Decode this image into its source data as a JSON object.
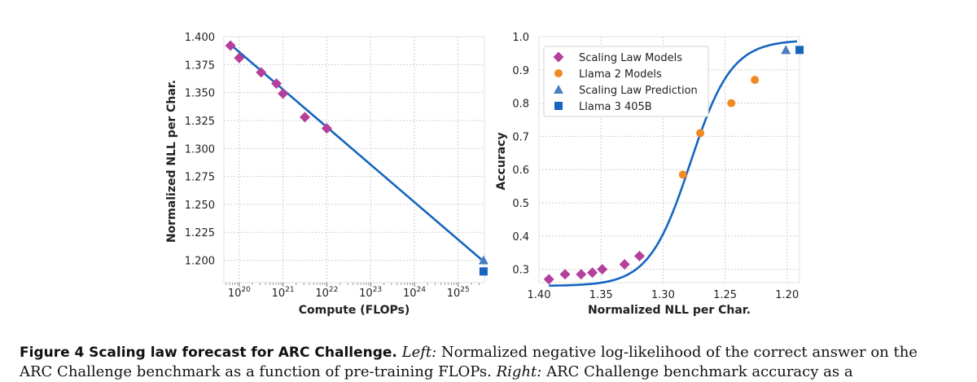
{
  "colors": {
    "fit_line": "#1565C0",
    "scaling_law_models": "#B5409C",
    "llama2": "#F08A24",
    "prediction": "#4A7FC0",
    "llama3": "#1565C0",
    "grid": "#cfcfcf"
  },
  "chart_data": [
    {
      "type": "scatter",
      "panel": "left",
      "xlabel": "Compute (FLOPs)",
      "ylabel": "Normalized NLL per Char.",
      "x_scale": "log10",
      "xlim_log10": [
        19.65,
        25.6
      ],
      "ylim": [
        1.18,
        1.4
      ],
      "x_ticks_log10": [
        20,
        21,
        22,
        23,
        24,
        25
      ],
      "x_tick_labels": [
        {
          "base": "10",
          "exp": "20"
        },
        {
          "base": "10",
          "exp": "21"
        },
        {
          "base": "10",
          "exp": "22"
        },
        {
          "base": "10",
          "exp": "23"
        },
        {
          "base": "10",
          "exp": "24"
        },
        {
          "base": "10",
          "exp": "25"
        }
      ],
      "y_ticks": [
        1.2,
        1.225,
        1.25,
        1.275,
        1.3,
        1.325,
        1.35,
        1.375,
        1.4
      ],
      "y_tick_labels": [
        "1.200",
        "1.225",
        "1.250",
        "1.275",
        "1.300",
        "1.325",
        "1.350",
        "1.375",
        "1.400"
      ],
      "fit_line": {
        "x_log10": [
          19.8,
          25.55
        ],
        "y": [
          1.393,
          1.2
        ]
      },
      "series": [
        {
          "name": "Scaling Law Models",
          "marker": "diamond",
          "x_log10": [
            19.8,
            20.0,
            20.5,
            20.85,
            21.0,
            21.5,
            22.0
          ],
          "y": [
            1.392,
            1.381,
            1.368,
            1.358,
            1.349,
            1.328,
            1.318
          ]
        },
        {
          "name": "Scaling Law Prediction",
          "marker": "triangle",
          "x_log10": [
            25.58
          ],
          "y": [
            1.2
          ]
        },
        {
          "name": "Llama 3 405B",
          "marker": "square",
          "x_log10": [
            25.58
          ],
          "y": [
            1.19
          ]
        }
      ]
    },
    {
      "type": "scatter",
      "panel": "right",
      "xlabel": "Normalized NLL per Char.",
      "ylabel": "Accuracy",
      "x_reversed": true,
      "xlim": [
        1.4,
        1.19
      ],
      "ylim": [
        0.26,
        1.0
      ],
      "x_ticks": [
        1.4,
        1.35,
        1.3,
        1.25,
        1.2
      ],
      "x_tick_labels": [
        "1.40",
        "1.35",
        "1.30",
        "1.25",
        "1.20"
      ],
      "y_ticks": [
        0.3,
        0.4,
        0.5,
        0.6,
        0.7,
        0.8,
        0.9,
        1.0
      ],
      "y_tick_labels": [
        "0.3",
        "0.4",
        "0.5",
        "0.6",
        "0.7",
        "0.8",
        "0.9",
        "1.0"
      ],
      "fit_curve": {
        "type": "sigmoid",
        "min": 0.25,
        "max": 0.99,
        "x0": 1.278,
        "k": 60,
        "x_range": [
          1.392,
          1.192
        ]
      },
      "legend_position": "top-right",
      "series": [
        {
          "name": "Scaling Law Models",
          "marker": "diamond",
          "x": [
            1.392,
            1.379,
            1.366,
            1.357,
            1.349,
            1.331,
            1.319
          ],
          "y": [
            0.27,
            0.285,
            0.285,
            0.29,
            0.3,
            0.315,
            0.34
          ]
        },
        {
          "name": "Llama 2 Models",
          "marker": "circle",
          "x": [
            1.284,
            1.27,
            1.245,
            1.226
          ],
          "y": [
            0.585,
            0.71,
            0.8,
            0.87
          ]
        },
        {
          "name": "Scaling Law Prediction",
          "marker": "triangle",
          "x": [
            1.201
          ],
          "y": [
            0.96
          ]
        },
        {
          "name": "Llama 3 405B",
          "marker": "square",
          "x": [
            1.19
          ],
          "y": [
            0.96
          ]
        }
      ]
    }
  ],
  "caption": {
    "label": "Figure 4",
    "title": "Scaling law forecast for ARC Challenge.",
    "left_tag": "Left:",
    "left_text": " Normalized negative log-likelihood of the correct answer on the",
    "line2_a": "ARC Challenge benchmark as a function of pre-training FLOPs.",
    "right_tag": "Right:",
    "right_text": " ARC Challenge benchmark accuracy as a"
  }
}
